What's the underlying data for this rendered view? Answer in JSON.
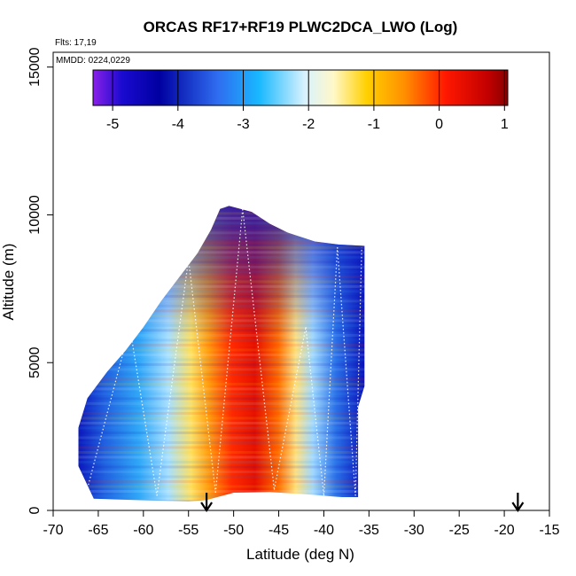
{
  "chart_data": {
    "type": "heatmap",
    "title": "ORCAS RF17+RF19 PLWC2DCA_LWO (Log)",
    "annotations": {
      "flights": "Flts: 17,19",
      "dates": "MMDD: 0224,0229"
    },
    "xlabel": "Latitude (deg N)",
    "ylabel": "Altitude (m)",
    "xlim": [
      -70,
      -15
    ],
    "ylim": [
      0,
      15500
    ],
    "xticks": [
      -70,
      -65,
      -60,
      -55,
      -50,
      -45,
      -40,
      -35,
      -30,
      -25,
      -20,
      -15
    ],
    "yticks": [
      0,
      5000,
      10000,
      15000
    ],
    "colorbar": {
      "ticks": [
        -5,
        -4,
        -3,
        -2,
        -1,
        0,
        1
      ],
      "range": [
        -5.3,
        1.05
      ],
      "label_position": "top"
    },
    "arrows_latitude": [
      -53,
      -18.5
    ],
    "envelope": {
      "top": [
        [
          -67.2,
          2800
        ],
        [
          -66.2,
          3800
        ],
        [
          -64,
          4700
        ],
        [
          -62,
          5400
        ],
        [
          -60,
          6200
        ],
        [
          -58,
          7100
        ],
        [
          -56,
          7900
        ],
        [
          -54,
          8700
        ],
        [
          -52.5,
          9500
        ],
        [
          -51.5,
          10200
        ],
        [
          -50.5,
          10300
        ],
        [
          -48,
          10100
        ],
        [
          -46,
          9700
        ],
        [
          -44,
          9400
        ],
        [
          -41,
          9100
        ],
        [
          -38.5,
          9000
        ],
        [
          -35.5,
          8950
        ]
      ],
      "bottom": [
        [
          -67.2,
          1500
        ],
        [
          -65.5,
          400
        ],
        [
          -64,
          380
        ],
        [
          -55,
          300
        ],
        [
          -53,
          350
        ],
        [
          -50,
          600
        ],
        [
          -46,
          620
        ],
        [
          -42,
          550
        ],
        [
          -38,
          450
        ],
        [
          -36.2,
          450
        ],
        [
          -35.5,
          1000
        ]
      ],
      "right_edge": [
        [
          -35.5,
          8950
        ],
        [
          -35.5,
          4200
        ],
        [
          -36.2,
          3500
        ],
        [
          -36.2,
          450
        ]
      ]
    },
    "grid": false
  }
}
